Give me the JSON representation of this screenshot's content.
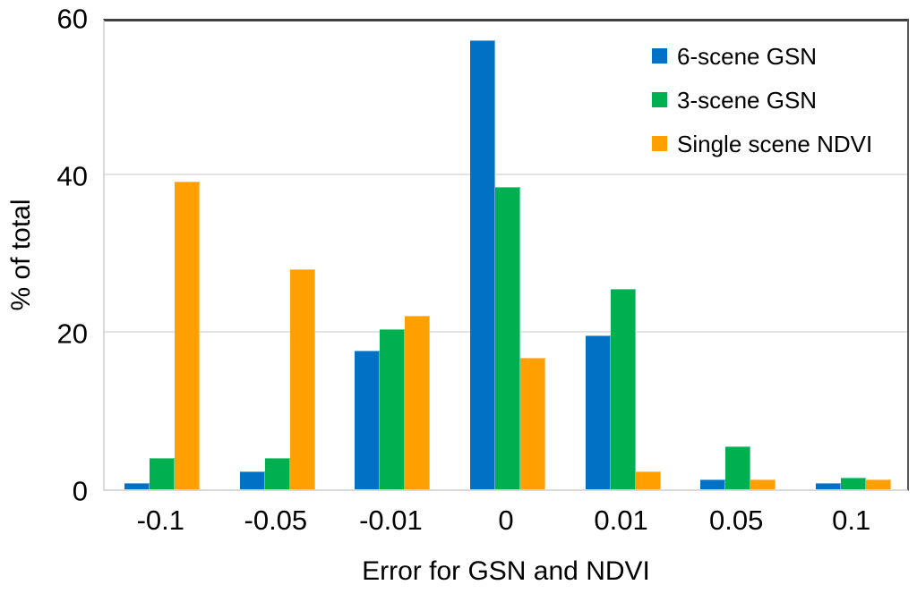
{
  "chart_data": {
    "type": "bar",
    "title": "",
    "xlabel": "Error for GSN and NDVI",
    "ylabel": "% of total",
    "categories": [
      "-0.1",
      "-0.05",
      "-0.01",
      "0",
      "0.01",
      "0.05",
      "0.1"
    ],
    "series": [
      {
        "name": "6-scene GSN",
        "color": "#0071C5",
        "edge_color": "#66aee0",
        "values": [
          0.8,
          2.3,
          17.6,
          57.1,
          19.5,
          1.2,
          0.8
        ]
      },
      {
        "name": "3-scene GSN",
        "color": "#00B050",
        "edge_color": "#5fd493",
        "values": [
          4.0,
          4.0,
          20.3,
          38.4,
          25.5,
          5.5,
          1.5
        ]
      },
      {
        "name": "Single scene NDVI",
        "color": "#FFA000",
        "edge_color": "#ffc46b",
        "values": [
          39.1,
          27.9,
          22.0,
          16.7,
          2.3,
          1.3,
          1.3
        ]
      }
    ],
    "ylim": [
      0,
      60
    ],
    "yticks": [
      0,
      20,
      40,
      60
    ],
    "grid": true,
    "legend_position": "top-right-inside"
  },
  "style_colors": {
    "gridline": "#e3e3e3",
    "plot_border_dark": "#404040",
    "plot_border_light": "#d9d9d9",
    "text": "#000000",
    "background": "#ffffff"
  }
}
